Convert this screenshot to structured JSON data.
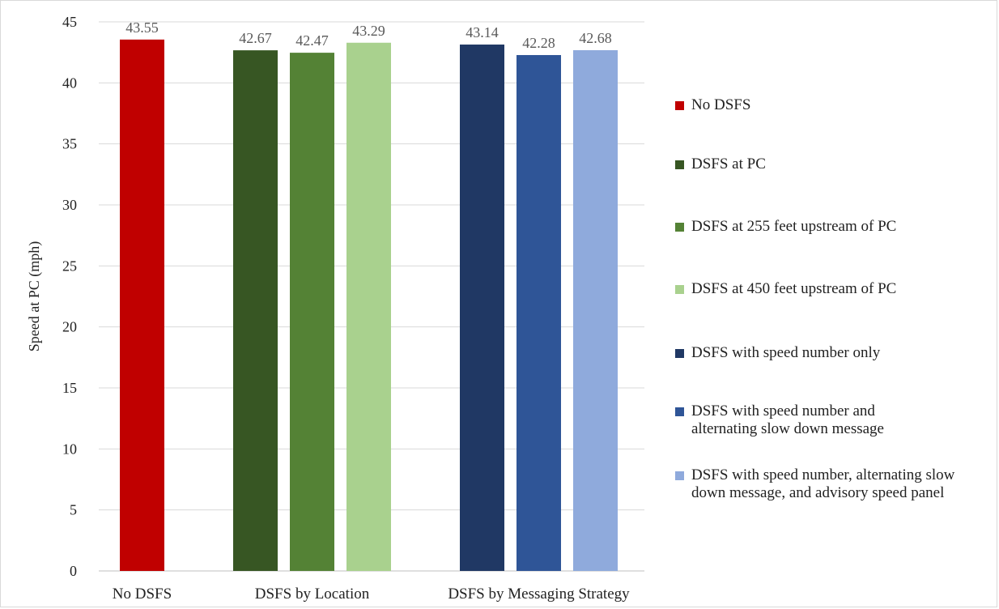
{
  "chart_data": {
    "type": "bar",
    "ylabel": "Speed at PC (mph)",
    "xlabel": "",
    "ylim": [
      0,
      45
    ],
    "y_ticks": [
      0,
      5,
      10,
      15,
      20,
      25,
      30,
      35,
      40,
      45
    ],
    "grid": true,
    "legend_position": "right",
    "groups": [
      {
        "label": "No DSFS",
        "bars": [
          0
        ]
      },
      {
        "label": "DSFS by Location",
        "bars": [
          1,
          2,
          3
        ]
      },
      {
        "label": "DSFS by Messaging Strategy",
        "bars": [
          4,
          5,
          6
        ]
      }
    ],
    "series": [
      {
        "name": "No DSFS",
        "value": 43.55,
        "label": "43.55",
        "color": "#c00000"
      },
      {
        "name": "DSFS at PC",
        "value": 42.67,
        "label": "42.67",
        "color": "#375623"
      },
      {
        "name": "DSFS at 255 feet upstream of PC",
        "value": 42.47,
        "label": "42.47",
        "color": "#548235"
      },
      {
        "name": "DSFS at 450 feet upstream of PC",
        "value": 43.29,
        "label": "43.29",
        "color": "#a9d18e"
      },
      {
        "name": "DSFS with speed number only",
        "value": 43.14,
        "label": "43.14",
        "color": "#203864"
      },
      {
        "name": "DSFS with speed number and alternating slow down message",
        "value": 42.28,
        "label": "42.28",
        "color": "#2f5597"
      },
      {
        "name": "DSFS with speed number, alternating slow down message, and advisory speed panel",
        "value": 42.68,
        "label": "42.68",
        "color": "#8faadc"
      }
    ]
  }
}
